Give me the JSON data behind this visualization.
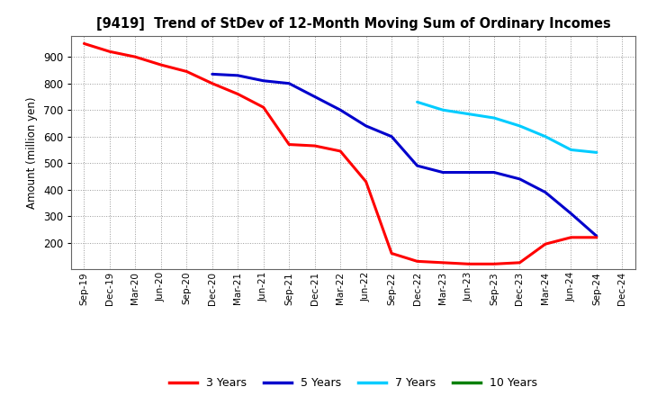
{
  "title": "[9419]  Trend of StDev of 12-Month Moving Sum of Ordinary Incomes",
  "ylabel": "Amount (million yen)",
  "background_color": "#ffffff",
  "plot_bg_color": "#ffffff",
  "grid_color": "#999999",
  "ylim": [
    100,
    980
  ],
  "yticks": [
    200,
    300,
    400,
    500,
    600,
    700,
    800,
    900
  ],
  "x_labels": [
    "Sep-19",
    "Dec-19",
    "Mar-20",
    "Jun-20",
    "Sep-20",
    "Dec-20",
    "Mar-21",
    "Jun-21",
    "Sep-21",
    "Dec-21",
    "Mar-22",
    "Jun-22",
    "Sep-22",
    "Dec-22",
    "Mar-23",
    "Jun-23",
    "Sep-23",
    "Dec-23",
    "Mar-24",
    "Jun-24",
    "Sep-24",
    "Dec-24"
  ],
  "series_3y_x": [
    0,
    1,
    2,
    3,
    4,
    5,
    6,
    7,
    8,
    9,
    10,
    11,
    12,
    13,
    14,
    15,
    16,
    17,
    18,
    19,
    20
  ],
  "series_3y_y": [
    950,
    920,
    900,
    870,
    845,
    800,
    760,
    710,
    570,
    565,
    545,
    430,
    160,
    130,
    125,
    120,
    120,
    125,
    195,
    220,
    220
  ],
  "series_5y_x": [
    5,
    6,
    7,
    8,
    9,
    10,
    11,
    12,
    13,
    14,
    15,
    16,
    17,
    18,
    19,
    20
  ],
  "series_5y_y": [
    835,
    830,
    810,
    800,
    750,
    700,
    640,
    600,
    490,
    465,
    465,
    465,
    440,
    390,
    310,
    225
  ],
  "series_7y_x": [
    13,
    14,
    15,
    16,
    17,
    18,
    19,
    20
  ],
  "series_7y_y": [
    730,
    700,
    685,
    670,
    640,
    600,
    550,
    540
  ],
  "series_10y_x": [],
  "series_10y_y": [],
  "line_colors": {
    "3 Years": "#ff0000",
    "5 Years": "#0000cc",
    "7 Years": "#00ccff",
    "10 Years": "#008000"
  },
  "line_widths": {
    "3 Years": 2.2,
    "5 Years": 2.2,
    "7 Years": 2.2,
    "10 Years": 2.2
  }
}
